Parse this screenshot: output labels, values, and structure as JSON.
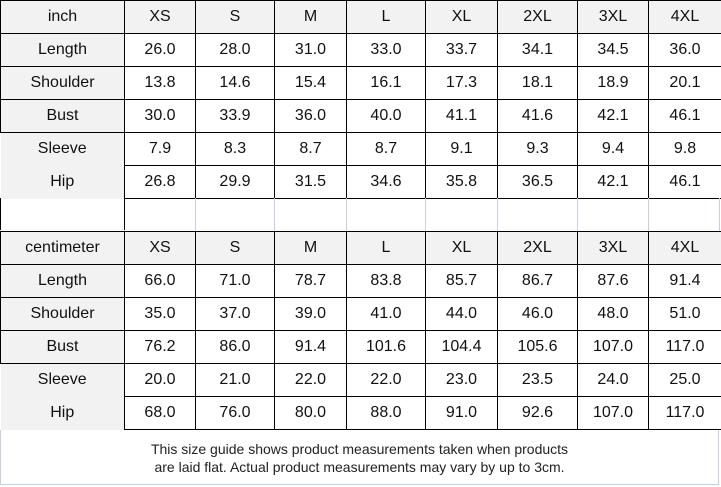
{
  "sizes": [
    "XS",
    "S",
    "M",
    "L",
    "XL",
    "2XL",
    "3XL",
    "4XL"
  ],
  "tables": [
    {
      "unit": "inch",
      "rows": [
        {
          "label": "Length",
          "values": [
            "26.0",
            "28.0",
            "31.0",
            "33.0",
            "33.7",
            "34.1",
            "34.5",
            "36.0"
          ]
        },
        {
          "label": "Shoulder",
          "values": [
            "13.8",
            "14.6",
            "15.4",
            "16.1",
            "17.3",
            "18.1",
            "18.9",
            "20.1"
          ]
        },
        {
          "label": "Bust",
          "values": [
            "30.0",
            "33.9",
            "36.0",
            "40.0",
            "41.1",
            "41.6",
            "42.1",
            "46.1"
          ]
        },
        {
          "label": "Sleeve",
          "values": [
            "7.9",
            "8.3",
            "8.7",
            "8.7",
            "9.1",
            "9.3",
            "9.4",
            "9.8"
          ]
        },
        {
          "label": "Hip",
          "values": [
            "26.8",
            "29.9",
            "31.5",
            "34.6",
            "35.8",
            "36.5",
            "42.1",
            "46.1"
          ]
        }
      ]
    },
    {
      "unit": "centimeter",
      "rows": [
        {
          "label": "Length",
          "values": [
            "66.0",
            "71.0",
            "78.7",
            "83.8",
            "85.7",
            "86.7",
            "87.6",
            "91.4"
          ]
        },
        {
          "label": "Shoulder",
          "values": [
            "35.0",
            "37.0",
            "39.0",
            "41.0",
            "44.0",
            "46.0",
            "48.0",
            "51.0"
          ]
        },
        {
          "label": "Bust",
          "values": [
            "76.2",
            "86.0",
            "91.4",
            "101.6",
            "104.4",
            "105.6",
            "107.0",
            "117.0"
          ]
        },
        {
          "label": "Sleeve",
          "values": [
            "20.0",
            "21.0",
            "22.0",
            "22.0",
            "23.0",
            "23.5",
            "24.0",
            "25.0"
          ]
        },
        {
          "label": "Hip",
          "values": [
            "68.0",
            "76.0",
            "80.0",
            "88.0",
            "91.0",
            "92.6",
            "107.0",
            "117.0"
          ]
        }
      ]
    }
  ],
  "footer": {
    "line1": "This size guide shows product measurements taken when products",
    "line2": "are laid flat. Actual product measurements may vary by up to 3cm."
  }
}
